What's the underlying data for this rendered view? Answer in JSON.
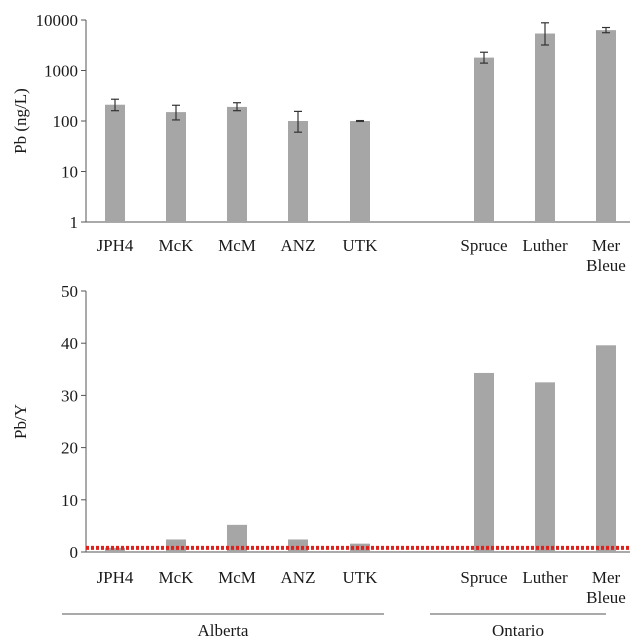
{
  "chart_data": [
    {
      "type": "bar",
      "ylabel": "Pb (ng/L)",
      "scale": "log",
      "ylim": [
        1,
        10000
      ],
      "yticks": [
        "1",
        "10",
        "100",
        "1000",
        "10000"
      ],
      "categories": [
        "JPH4",
        "McK",
        "McM",
        "ANZ",
        "UTK",
        "Spruce",
        "Luther",
        "Mer Bleue"
      ],
      "category_labels": [
        [
          "JPH4"
        ],
        [
          "McK"
        ],
        [
          "McM"
        ],
        [
          "ANZ"
        ],
        [
          "UTK"
        ],
        [
          "Spruce"
        ],
        [
          "Luther"
        ],
        [
          "Mer",
          "Bleue"
        ]
      ],
      "values": [
        210,
        150,
        190,
        100,
        100,
        1800,
        5400,
        6300
      ],
      "error_low": [
        160,
        105,
        160,
        60,
        98,
        1400,
        3200,
        5600
      ],
      "error_high": [
        270,
        205,
        230,
        155,
        102,
        2300,
        8800,
        7100
      ],
      "bar_color": "#a6a6a6",
      "grid": false
    },
    {
      "type": "bar",
      "ylabel": "Pb/Y",
      "scale": "linear",
      "ylim": [
        0,
        50
      ],
      "yticks": [
        "0",
        "10",
        "20",
        "30",
        "40",
        "50"
      ],
      "categories": [
        "JPH4",
        "McK",
        "McM",
        "ANZ",
        "UTK",
        "Spruce",
        "Luther",
        "Mer Bleue"
      ],
      "category_labels": [
        [
          "JPH4"
        ],
        [
          "McK"
        ],
        [
          "McM"
        ],
        [
          "ANZ"
        ],
        [
          "UTK"
        ],
        [
          "Spruce"
        ],
        [
          "Luther"
        ],
        [
          "Mer",
          "Bleue"
        ]
      ],
      "values": [
        0.8,
        2.4,
        5.2,
        2.4,
        1.6,
        34.3,
        32.5,
        39.6
      ],
      "reference_line": {
        "value": 0.8,
        "color": "#e0201b",
        "style": "dotted"
      },
      "bar_color": "#a6a6a6",
      "grid": false,
      "groups": [
        {
          "label": "Alberta",
          "members": [
            "JPH4",
            "McK",
            "McM",
            "ANZ",
            "UTK"
          ]
        },
        {
          "label": "Ontario",
          "members": [
            "Spruce",
            "Luther",
            "Mer Bleue"
          ]
        }
      ]
    }
  ]
}
